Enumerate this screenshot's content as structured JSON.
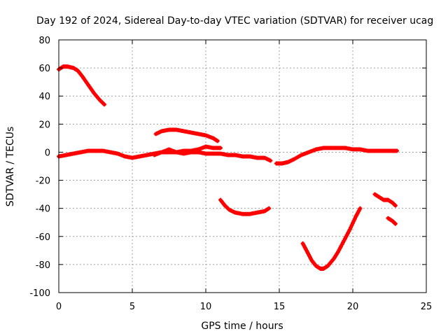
{
  "chart_data": {
    "type": "scatter",
    "title": "Day 192 of 2024, Sidereal Day-to-day VTEC variation (SDTVAR) for receiver ucag",
    "xlabel": "GPS time / hours",
    "ylabel": "SDTVAR / TECUs",
    "xlim": [
      0,
      25
    ],
    "ylim": [
      -100,
      80
    ],
    "xticks": [
      0,
      5,
      10,
      15,
      20,
      25
    ],
    "yticks": [
      -100,
      -80,
      -60,
      -40,
      -20,
      0,
      20,
      40,
      60,
      80
    ],
    "grid": true,
    "color": "#ff0000",
    "series": [
      {
        "name": "arc-1",
        "x": [
          0.0,
          0.3,
          0.6,
          1.0,
          1.3,
          1.6,
          2.0,
          2.4,
          2.8,
          3.1
        ],
        "y": [
          59,
          61,
          61,
          60,
          58,
          54,
          48,
          42,
          37,
          34
        ]
      },
      {
        "name": "arc-2",
        "x": [
          0.0,
          0.5,
          1.0,
          1.5,
          2.0,
          2.5,
          3.0,
          3.5,
          4.0,
          4.5,
          5.0,
          5.5,
          6.0,
          6.5,
          7.0,
          7.5,
          8.0,
          8.5,
          9.0,
          9.5,
          10.0,
          10.5,
          11.0,
          11.5,
          12.0,
          12.5,
          13.0,
          13.5,
          14.0,
          14.4
        ],
        "y": [
          -3,
          -2,
          -1,
          0,
          1,
          1,
          1,
          0,
          -1,
          -3,
          -4,
          -3,
          -2,
          -1,
          0,
          0,
          0,
          -1,
          0,
          0,
          -1,
          -1,
          -1,
          -2,
          -2,
          -3,
          -3,
          -4,
          -4,
          -6
        ]
      },
      {
        "name": "arc-3",
        "x": [
          6.6,
          7.0,
          7.5,
          8.0,
          8.5,
          9.0,
          9.5,
          10.0,
          10.5,
          10.8
        ],
        "y": [
          13,
          15,
          16,
          16,
          15,
          14,
          13,
          12,
          10,
          8
        ]
      },
      {
        "name": "arc-4",
        "x": [
          6.5,
          7.0,
          7.5,
          8.0,
          8.5,
          9.0,
          9.5,
          10.0,
          10.5,
          11.0
        ],
        "y": [
          -2,
          0,
          2,
          0,
          1,
          1,
          2,
          4,
          3,
          3
        ]
      },
      {
        "name": "arc-5",
        "x": [
          11.0,
          11.3,
          11.6,
          12.0,
          12.5,
          13.0,
          13.5,
          14.0,
          14.3
        ],
        "y": [
          -34,
          -38,
          -41,
          -43,
          -44,
          -44,
          -43,
          -42,
          -40
        ]
      },
      {
        "name": "arc-6",
        "x": [
          14.8,
          15.2,
          15.6,
          16.0,
          16.5,
          17.0,
          17.5,
          18.0,
          18.5,
          19.0,
          19.5,
          20.0,
          20.5,
          21.0,
          21.5,
          22.0,
          22.5,
          23.0
        ],
        "y": [
          -8,
          -8,
          -7,
          -5,
          -2,
          0,
          2,
          3,
          3,
          3,
          3,
          2,
          2,
          1,
          1,
          1,
          1,
          1
        ]
      },
      {
        "name": "arc-7",
        "x": [
          16.6,
          16.9,
          17.2,
          17.5,
          17.8,
          18.0,
          18.3,
          18.7,
          19.0,
          19.4,
          19.8,
          20.2,
          20.5
        ],
        "y": [
          -65,
          -71,
          -77,
          -81,
          -83,
          -83,
          -81,
          -76,
          -71,
          -63,
          -55,
          -46,
          -40
        ]
      },
      {
        "name": "arc-8",
        "x": [
          21.5,
          21.8,
          22.1,
          22.4,
          22.7,
          22.9
        ],
        "y": [
          -30,
          -32,
          -34,
          -34,
          -36,
          -38
        ]
      },
      {
        "name": "arc-9",
        "x": [
          22.4,
          22.7,
          22.9
        ],
        "y": [
          -47,
          -49,
          -51
        ]
      }
    ]
  }
}
